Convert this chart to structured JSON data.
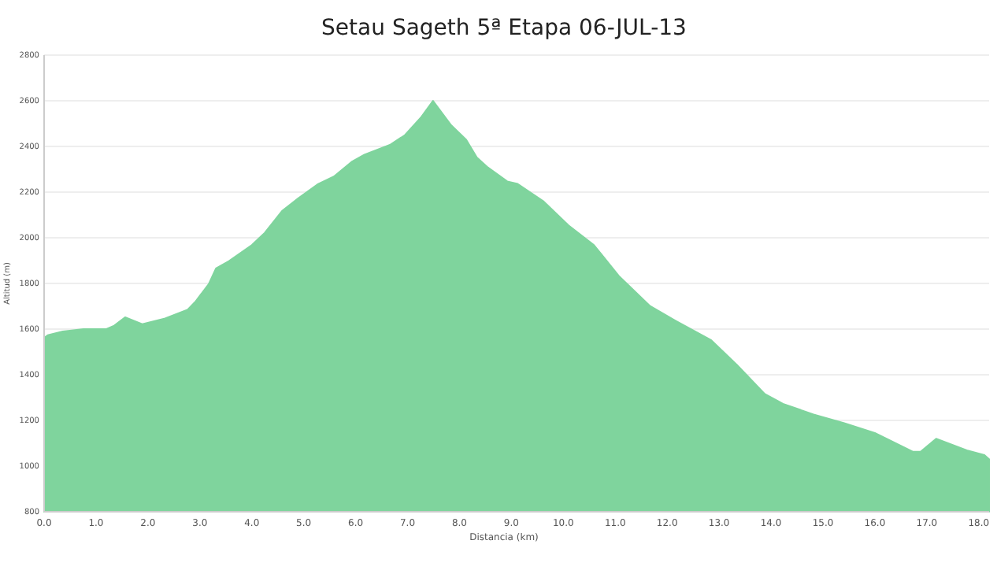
{
  "chart_data": {
    "type": "area",
    "title": "Setau Sageth 5ª Etapa 06-JUL-13",
    "xlabel": "Distancia  (km)",
    "ylabel": "Altitud (m)",
    "x": [
      0,
      0.07,
      0.36,
      0.76,
      1.2,
      1.35,
      1.56,
      1.89,
      2.33,
      2.77,
      2.92,
      3.17,
      3.31,
      3.56,
      4.0,
      4.25,
      4.59,
      4.89,
      5.28,
      5.58,
      5.92,
      6.17,
      6.66,
      6.95,
      7.25,
      7.49,
      7.84,
      8.13,
      8.33,
      8.53,
      8.92,
      9.12,
      9.61,
      10.1,
      10.59,
      11.08,
      11.67,
      12.16,
      12.85,
      13.34,
      13.88,
      14.23,
      14.82,
      15.41,
      16.0,
      16.73,
      16.88,
      17.18,
      17.77,
      18.11,
      18.2
    ],
    "series": [
      {
        "color": "#7fd49d",
        "values": [
          1562,
          1573,
          1590,
          1600,
          1600,
          1615,
          1652,
          1622,
          1647,
          1686,
          1722,
          1797,
          1866,
          1898,
          1968,
          2022,
          2119,
          2172,
          2236,
          2268,
          2332,
          2364,
          2407,
          2450,
          2525,
          2600,
          2493,
          2429,
          2353,
          2311,
          2247,
          2236,
          2161,
          2054,
          1968,
          1830,
          1701,
          1637,
          1551,
          1444,
          1316,
          1273,
          1226,
          1188,
          1145,
          1063,
          1063,
          1120,
          1069,
          1048,
          1030
        ]
      }
    ],
    "xlim": [
      0,
      18.2
    ],
    "ylim": [
      800,
      2800
    ],
    "xticks": [
      {
        "value": 0,
        "label": "0.0"
      },
      {
        "value": 1,
        "label": "1.0"
      },
      {
        "value": 2,
        "label": "2.0"
      },
      {
        "value": 3,
        "label": "3.0"
      },
      {
        "value": 4,
        "label": "4.0"
      },
      {
        "value": 5,
        "label": "5.0"
      },
      {
        "value": 6,
        "label": "6.0"
      },
      {
        "value": 7,
        "label": "7.0"
      },
      {
        "value": 8,
        "label": "8.0"
      },
      {
        "value": 9,
        "label": "9.0"
      },
      {
        "value": 10,
        "label": "10.0"
      },
      {
        "value": 11,
        "label": "11.0"
      },
      {
        "value": 12,
        "label": "12.0"
      },
      {
        "value": 13,
        "label": "13.0"
      },
      {
        "value": 14,
        "label": "14.0"
      },
      {
        "value": 15,
        "label": "15.0"
      },
      {
        "value": 16,
        "label": "16.0"
      },
      {
        "value": 17,
        "label": "17.0"
      },
      {
        "value": 18,
        "label": "18.0"
      }
    ],
    "yticks": [
      800,
      1000,
      1200,
      1400,
      1600,
      1800,
      2000,
      2200,
      2400,
      2600,
      2800
    ],
    "grid": "y",
    "marker": "none"
  }
}
